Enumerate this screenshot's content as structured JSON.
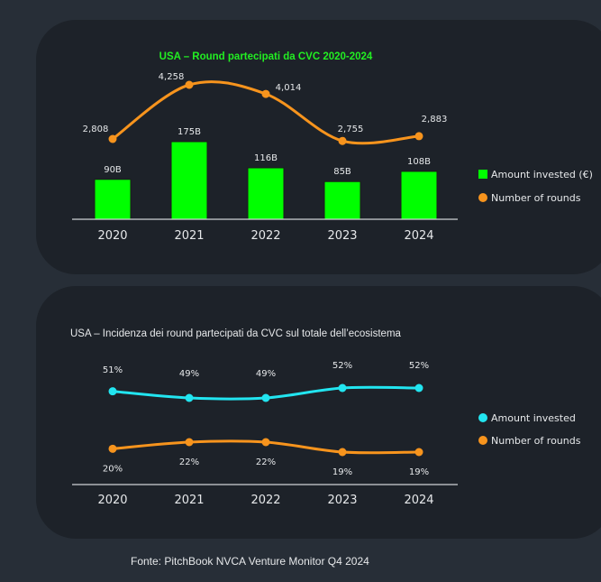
{
  "colors": {
    "page_bg": "#272e37",
    "panel_bg": "#1d2229",
    "bar_green": "#00ff00",
    "line_orange": "#f7941d",
    "line_cyan": "#22e5f0",
    "text": "#e6e8ea",
    "title_green": "#22ee22"
  },
  "source": "Fonte: PitchBook NVCA Venture Monitor Q4 2024",
  "chart_data": [
    {
      "type": "bar",
      "title": "USA – Round partecipati da CVC 2020-2024",
      "categories": [
        "2020",
        "2021",
        "2022",
        "2023",
        "2024"
      ],
      "series": [
        {
          "name": "Amount invested (€)",
          "type": "bar",
          "values": [
            90,
            175,
            116,
            85,
            108
          ],
          "labels": [
            "90B",
            "175B",
            "116B",
            "85B",
            "108B"
          ]
        },
        {
          "name": "Number of rounds",
          "type": "line",
          "values": [
            2808,
            4258,
            4014,
            2755,
            2883
          ],
          "labels": [
            "2,808",
            "4,258",
            "4,014",
            "2,755",
            "2,883"
          ]
        }
      ],
      "legend_position": "right"
    },
    {
      "type": "line",
      "title": "USA – Incidenza dei round partecipati da CVC sul totale dell’ecosistema",
      "categories": [
        "2020",
        "2021",
        "2022",
        "2023",
        "2024"
      ],
      "series": [
        {
          "name": "Amount invested",
          "values": [
            51,
            49,
            49,
            52,
            52
          ],
          "labels": [
            "51%",
            "49%",
            "49%",
            "52%",
            "52%"
          ]
        },
        {
          "name": "Number of rounds",
          "values": [
            20,
            22,
            22,
            19,
            19
          ],
          "labels": [
            "20%",
            "22%",
            "22%",
            "19%",
            "19%"
          ]
        }
      ],
      "legend_position": "right"
    }
  ]
}
